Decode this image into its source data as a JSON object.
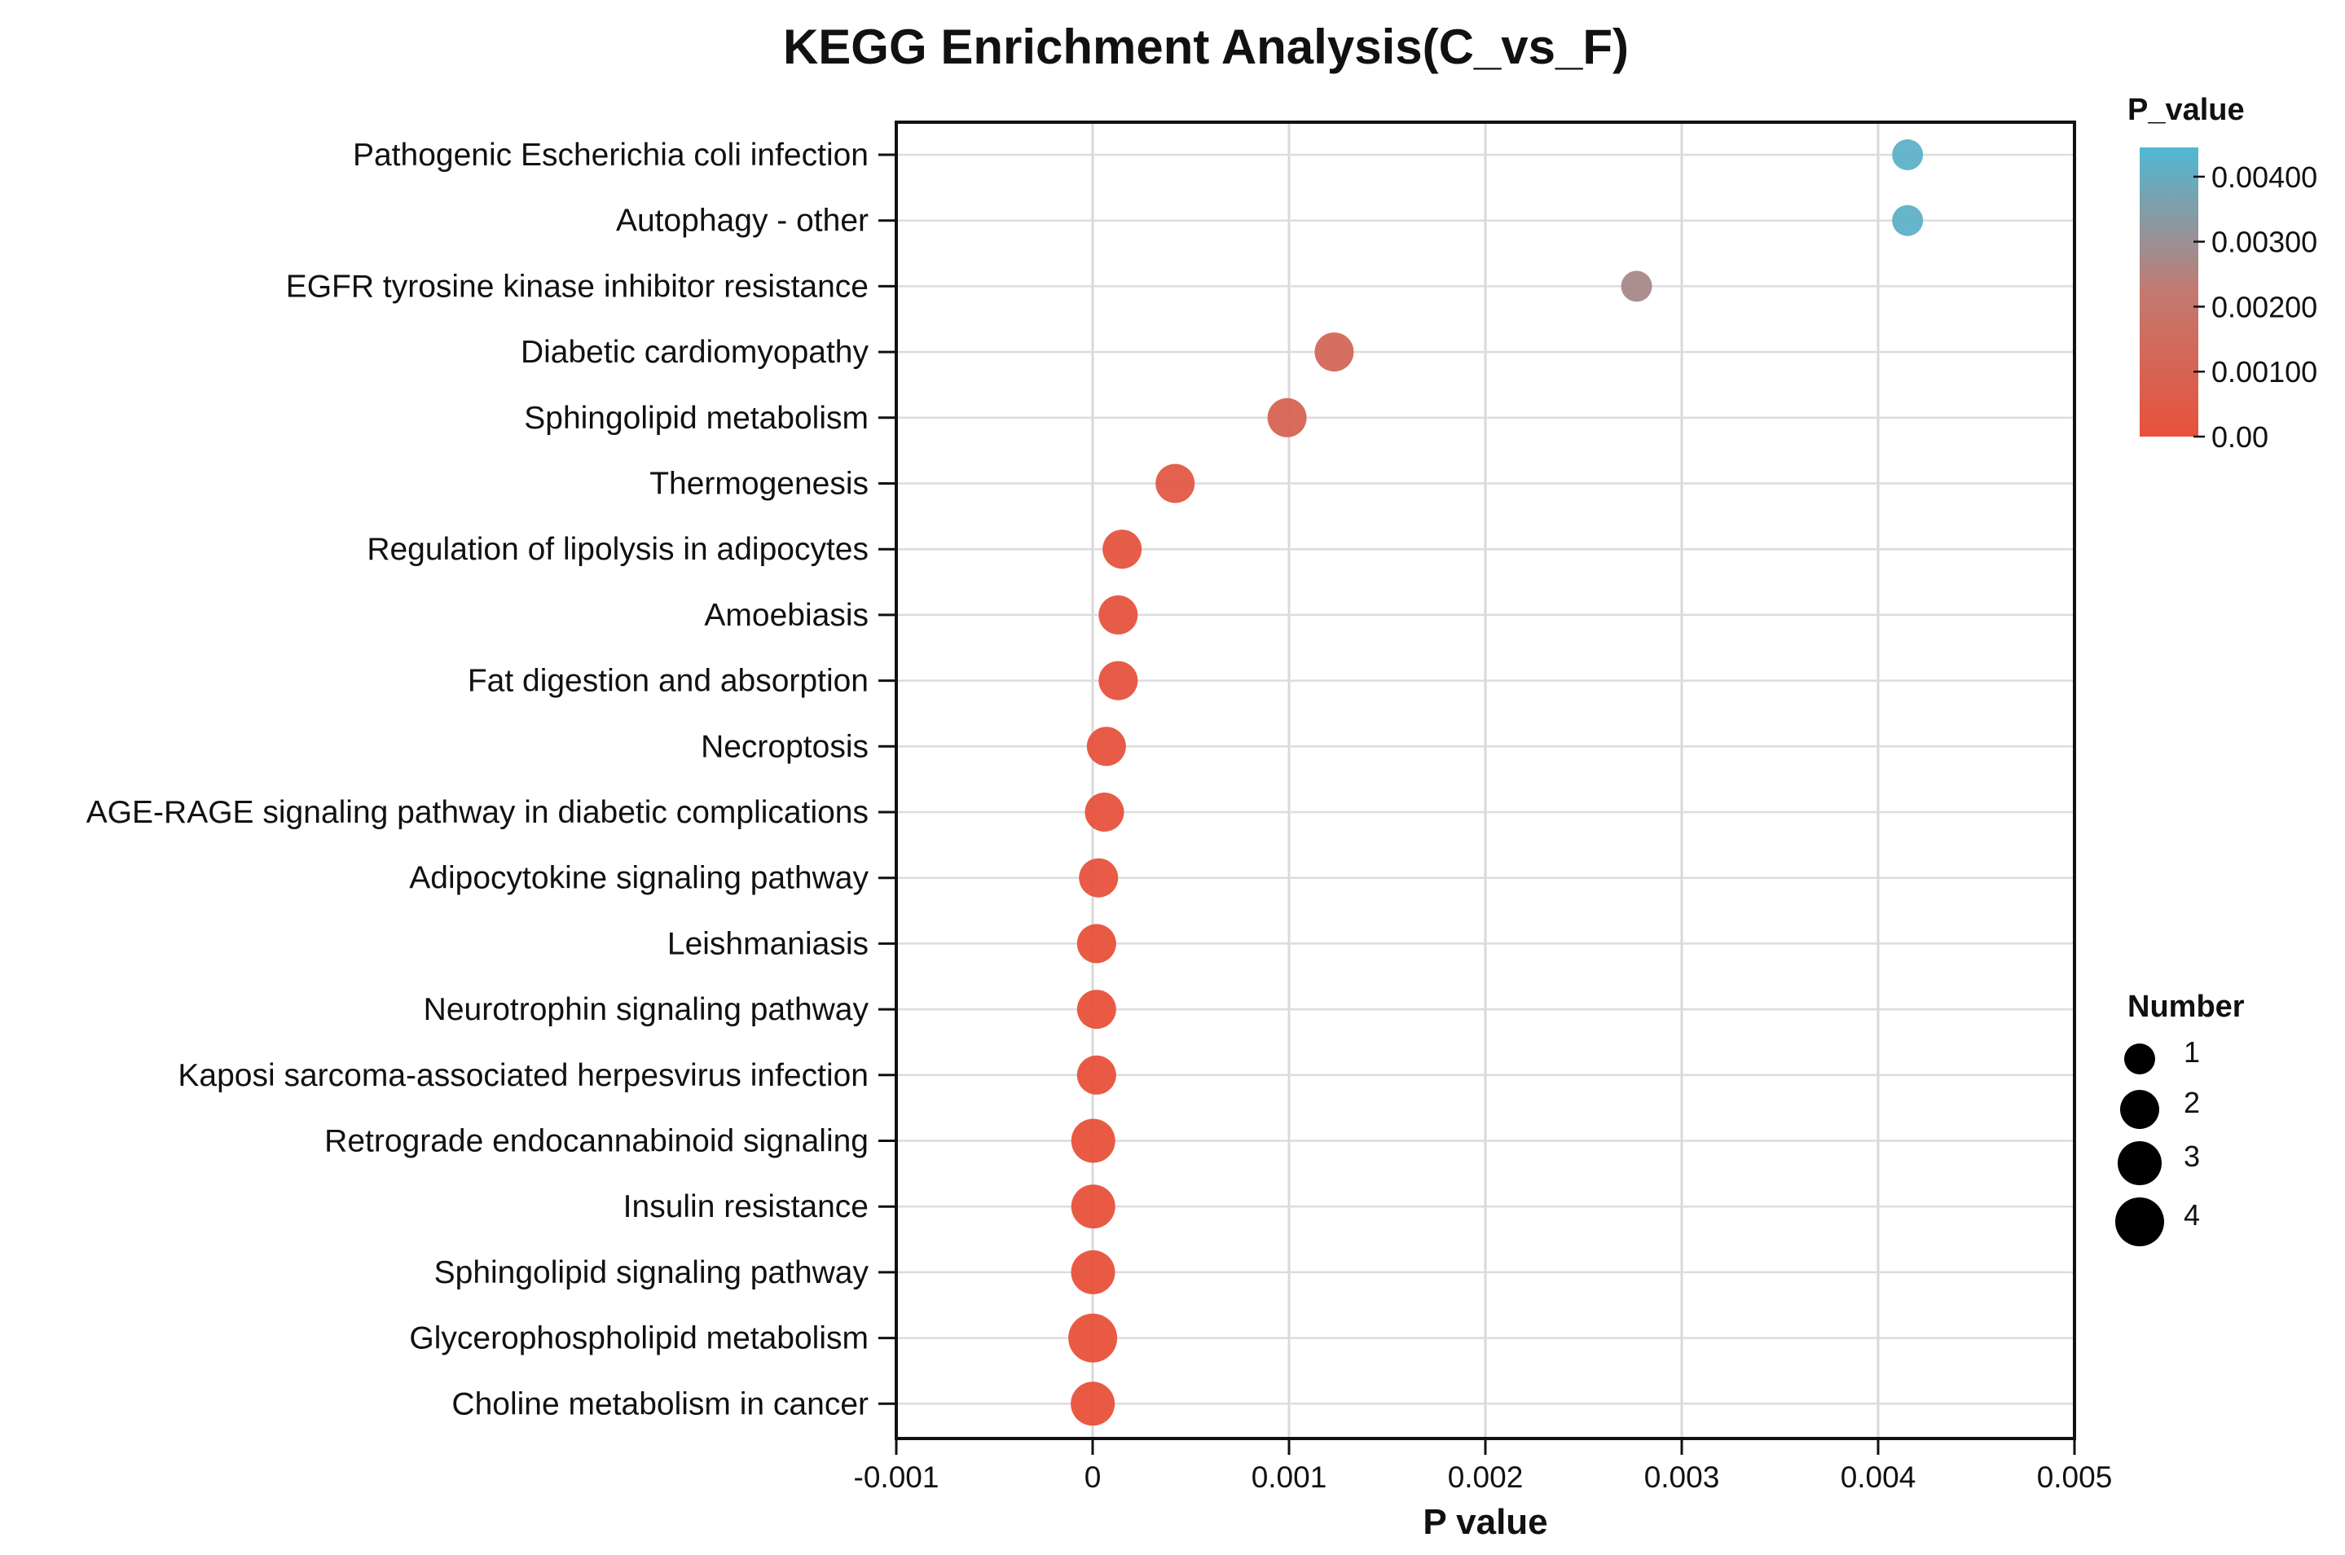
{
  "chart_data": {
    "type": "scatter",
    "title": "KEGG Enrichment Analysis(C_vs_F)",
    "xlabel": "P value",
    "ylabel": "",
    "xlim": [
      -0.001,
      0.005
    ],
    "x_ticks": [
      -0.001,
      0,
      0.001,
      0.002,
      0.003,
      0.004,
      0.005
    ],
    "x_tick_labels": [
      "-0.001",
      "0",
      "0.001",
      "0.002",
      "0.003",
      "0.004",
      "0.005"
    ],
    "grid": true,
    "categories": [
      "Pathogenic Escherichia coli infection",
      "Autophagy - other",
      "EGFR tyrosine kinase inhibitor resistance",
      "Diabetic cardiomyopathy",
      "Sphingolipid metabolism",
      "Thermogenesis",
      "Regulation of lipolysis in adipocytes",
      "Amoebiasis",
      "Fat digestion and absorption",
      "Necroptosis",
      "AGE-RAGE signaling pathway in diabetic complications",
      "Adipocytokine signaling pathway",
      "Leishmaniasis",
      "Neurotrophin signaling pathway",
      "Kaposi sarcoma-associated herpesvirus infection",
      "Retrograde endocannabinoid signaling",
      "Insulin resistance",
      "Sphingolipid signaling pathway",
      "Glycerophospholipid metabolism",
      "Choline metabolism in cancer"
    ],
    "p_values": [
      0.00415,
      0.00415,
      0.00277,
      0.00123,
      0.00099,
      0.00042,
      0.00015,
      0.00013,
      0.00013,
      7e-05,
      6e-05,
      3e-05,
      2e-05,
      2e-05,
      2e-05,
      3e-06,
      3e-06,
      2e-06,
      5e-07,
      5e-07
    ],
    "numbers": [
      1,
      1,
      1,
      2,
      2,
      2,
      2,
      2,
      2,
      2,
      2,
      2,
      2,
      2,
      2,
      3,
      3,
      3,
      4,
      3
    ],
    "color_legend": {
      "title": "P_value",
      "ticks": [
        0.0,
        0.001,
        0.002,
        0.003,
        0.004
      ],
      "tick_labels": [
        "0.00",
        "0.00100",
        "0.00200",
        "0.00300",
        "0.00400"
      ],
      "range": [
        0.0,
        0.00445
      ],
      "low_color": "#e8513b",
      "mid_color": "#c27a70",
      "high_color": "#4fb9d4",
      "placement": "top-right"
    },
    "size_legend": {
      "title": "Number",
      "values": [
        1,
        2,
        3,
        4
      ],
      "labels": [
        "1",
        "2",
        "3",
        "4"
      ],
      "placement": "right"
    }
  }
}
